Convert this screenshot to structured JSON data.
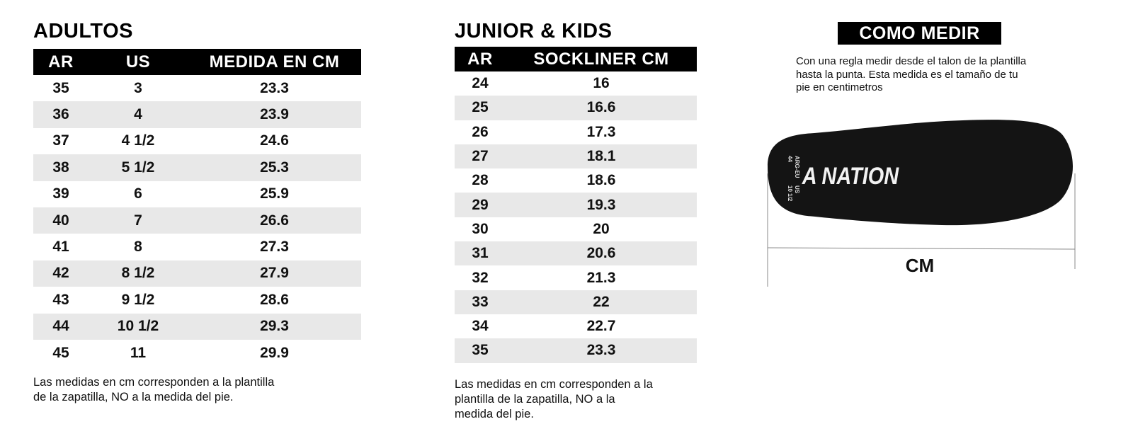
{
  "adultos": {
    "title": "ADULTOS",
    "headers": [
      "AR",
      "US",
      "MEDIDA EN CM"
    ],
    "rows": [
      [
        "35",
        "3",
        "23.3"
      ],
      [
        "36",
        "4",
        "23.9"
      ],
      [
        "37",
        "4 1/2",
        "24.6"
      ],
      [
        "38",
        "5 1/2",
        "25.3"
      ],
      [
        "39",
        "6",
        "25.9"
      ],
      [
        "40",
        "7",
        "26.6"
      ],
      [
        "41",
        "8",
        "27.3"
      ],
      [
        "42",
        "8 1/2",
        "27.9"
      ],
      [
        "43",
        "9 1/2",
        "28.6"
      ],
      [
        "44",
        "10 1/2",
        "29.3"
      ],
      [
        "45",
        "11",
        "29.9"
      ]
    ],
    "note_line1": "Las medidas en cm corresponden a la plantilla",
    "note_line2": "de la zapatilla, NO a la medida del pie."
  },
  "junior_kids": {
    "title": "JUNIOR & KIDS",
    "headers": [
      "AR",
      "SOCKLINER CM"
    ],
    "rows": [
      [
        "24",
        "16"
      ],
      [
        "25",
        "16.6"
      ],
      [
        "26",
        "17.3"
      ],
      [
        "27",
        "18.1"
      ],
      [
        "28",
        "18.6"
      ],
      [
        "29",
        "19.3"
      ],
      [
        "30",
        "20"
      ],
      [
        "31",
        "20.6"
      ],
      [
        "32",
        "21.3"
      ],
      [
        "33",
        "22"
      ],
      [
        "34",
        "22.7"
      ],
      [
        "35",
        "23.3"
      ]
    ],
    "note_line1": "Las medidas en cm corresponden a la",
    "note_line2": "plantilla de la zapatilla, NO a la",
    "note_line3": "medida del pie."
  },
  "como_medir": {
    "title": "COMO MEDIR",
    "desc_line1": "Con una regla medir desde el talon de la plantilla",
    "desc_line2": "hasta la punta. Esta medida es el tamaño de tu",
    "desc_line3": "pie en centimetros",
    "insole_brand": "A NATION",
    "insole_label_arg": "ARG-EU",
    "insole_label_us": "US",
    "insole_size_arg": "44",
    "insole_size_us": "10 1/2",
    "measure_label": "CM"
  },
  "colors": {
    "header_bg": "#000000",
    "row_alt": "#e8e8e8",
    "insole": "#141414"
  }
}
